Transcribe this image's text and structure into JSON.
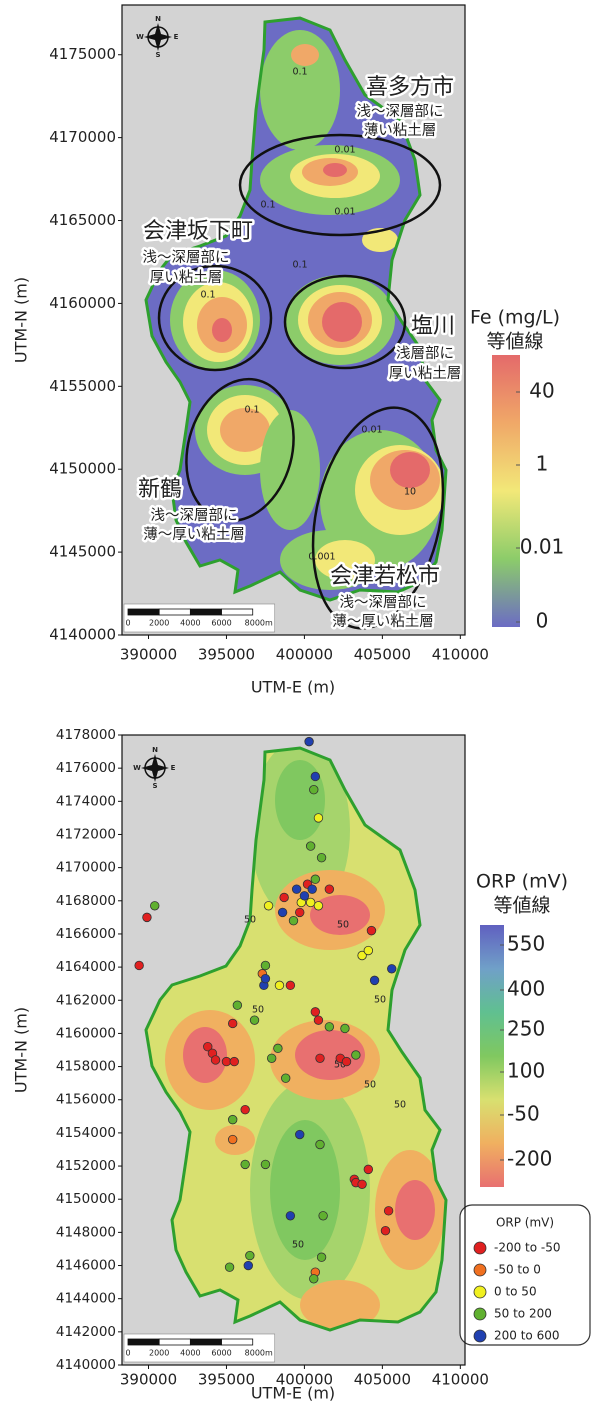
{
  "chart_data": [
    {
      "type": "contour",
      "xlabel": "UTM-E (m)",
      "ylabel": "UTM-N (m)",
      "xlim": [
        388300,
        410300
      ],
      "ylim": [
        4140000,
        4178000
      ],
      "xticks": [
        390000,
        395000,
        400000,
        405000,
        410000
      ],
      "yticks": [
        4140000,
        4145000,
        4150000,
        4155000,
        4160000,
        4165000,
        4170000,
        4175000
      ],
      "compass": [
        "N",
        "E",
        "S",
        "W"
      ],
      "scalebar": [
        "0",
        "2000",
        "4000",
        "6000",
        "8000m"
      ],
      "colorbar": {
        "title": "Fe (mg/L)",
        "subtitle": "等値線",
        "labels": [
          40,
          1,
          0.01,
          0
        ],
        "colors": [
          "#e46a6a",
          "#f0a868",
          "#f2e878",
          "#8ccc6a",
          "#6c6cc4"
        ]
      },
      "contour_labels": [
        0.1,
        0.01,
        0.1,
        0.01,
        0.1,
        0.1,
        0.1,
        10,
        0.01,
        0.001
      ],
      "regions": [
        {
          "name": "喜多方市",
          "note": [
            "浅～深層部に",
            "薄い粘土層"
          ]
        },
        {
          "name": "会津坂下町",
          "note": [
            "浅～深層部に",
            "厚い粘土層"
          ]
        },
        {
          "name": "塩川",
          "note": [
            "浅層部に",
            "厚い粘土層"
          ]
        },
        {
          "name": "新鶴",
          "note": [
            "浅～深層部に",
            "薄～厚い粘土層"
          ]
        },
        {
          "name": "会津若松市",
          "note": [
            "浅～深層部に",
            "薄～厚い粘土層"
          ]
        }
      ]
    },
    {
      "type": "scatter",
      "xlabel": "UTM-E (m)",
      "ylabel": "UTM-N (m)",
      "xlim": [
        388300,
        410300
      ],
      "ylim": [
        4140000,
        4178000
      ],
      "xticks": [
        390000,
        395000,
        400000,
        405000,
        410000
      ],
      "yticks": [
        4140000,
        4142000,
        4144000,
        4146000,
        4148000,
        4150000,
        4152000,
        4154000,
        4156000,
        4158000,
        4160000,
        4162000,
        4164000,
        4166000,
        4168000,
        4170000,
        4172000,
        4174000,
        4176000,
        4178000
      ],
      "compass": [
        "N",
        "E",
        "S",
        "W"
      ],
      "scalebar": [
        "0",
        "2000",
        "4000",
        "6000",
        "8000m"
      ],
      "colorbar": {
        "title": "ORP (mV)",
        "subtitle": "等値線",
        "labels": [
          550,
          400,
          250,
          100,
          -50,
          -200
        ],
        "colors": [
          "#6060c0",
          "#70a0c8",
          "#60c090",
          "#80c860",
          "#d8e070",
          "#f0b060",
          "#e87070"
        ]
      },
      "contour_labels": [
        50,
        50,
        50,
        50,
        50,
        50,
        50,
        50
      ],
      "legend_title": "ORP (mV)",
      "series": [
        {
          "name": "-200 to -50",
          "color": "#e02020",
          "x": [
            400200,
            399700,
            401600,
            398700,
            404300,
            399100,
            400700,
            400900,
            395400,
            393800,
            394100,
            394300,
            395000,
            395500,
            401000,
            402300,
            402700,
            396200,
            403200,
            404100,
            403300,
            403700,
            405400,
            405200,
            389900,
            389400
          ],
          "y": [
            4169000,
            4167300,
            4168700,
            4168200,
            4166200,
            4162900,
            4161300,
            4160800,
            4160600,
            4159200,
            4158800,
            4158400,
            4158300,
            4158300,
            4158500,
            4158500,
            4158300,
            4155400,
            4151200,
            4151800,
            4151000,
            4150900,
            4149300,
            4148100,
            4167000,
            4164100
          ]
        },
        {
          "name": "-50 to 0",
          "color": "#f07020",
          "x": [
            397300,
            395400,
            400700
          ],
          "y": [
            4163600,
            4153600,
            4145600
          ]
        },
        {
          "name": "0 to 50",
          "color": "#f0f020",
          "x": [
            400900,
            399800,
            400400,
            400900,
            397700,
            403700,
            404100,
            398400
          ],
          "y": [
            4173000,
            4167900,
            4167900,
            4167700,
            4167700,
            4164700,
            4165000,
            4162900
          ]
        },
        {
          "name": "50 to 200",
          "color": "#60b030",
          "x": [
            400600,
            400400,
            401100,
            400700,
            399300,
            397500,
            395700,
            396800,
            401600,
            402600,
            397900,
            398300,
            398800,
            403300,
            395400,
            396200,
            397500,
            401000,
            401200,
            396500,
            395200,
            401100,
            400600,
            390400
          ],
          "y": [
            4174700,
            4171300,
            4170600,
            4169300,
            4166800,
            4164100,
            4161700,
            4160800,
            4160400,
            4160300,
            4158500,
            4159100,
            4157300,
            4158700,
            4154800,
            4152100,
            4152100,
            4153300,
            4149000,
            4146600,
            4145900,
            4146500,
            4145200,
            4167700
          ]
        },
        {
          "name": "200 to 600",
          "color": "#2040b0",
          "x": [
            400300,
            400700,
            399500,
            400500,
            400000,
            398600,
            405600,
            404500,
            397400,
            397500,
            399700,
            399100,
            396400
          ],
          "y": [
            4177600,
            4175500,
            4168700,
            4168700,
            4168300,
            4167300,
            4163900,
            4163200,
            4162900,
            4163300,
            4153900,
            4149000,
            4146000
          ]
        }
      ]
    }
  ]
}
